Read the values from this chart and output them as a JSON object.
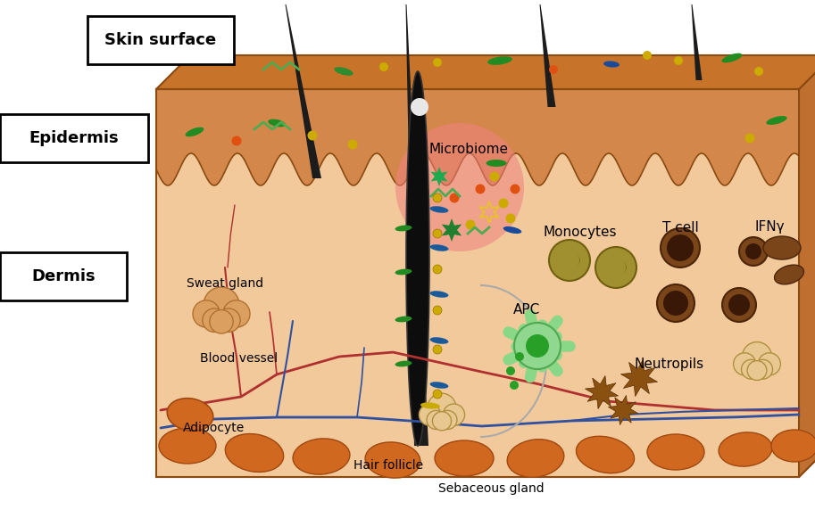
{
  "fig_width": 9.13,
  "fig_height": 5.81,
  "bg_color": "#ffffff",
  "dermis_fill": "#f2c99a",
  "epidermis_fill": "#d4874a",
  "top_face_fill": "#c8732a",
  "right_face_fill": "#bf7030",
  "bottom_face_fill": "#c07030",
  "box_outline": "#8a4a10",
  "hair_color": "#1c1c1c",
  "blood_red": "#b03030",
  "blood_blue": "#3050a0",
  "adipocyte_color": "#d06820",
  "adipocyte_ec": "#a04810",
  "sweat_color": "#dba060",
  "sweat_ec": "#b07030",
  "microbiome_pink": "#f08080",
  "sebaceous_color": "#e8c890",
  "sebaceous_ec": "#b09040",
  "monocyte_fill": "#a09030",
  "monocyte_nucleus": "#706010",
  "tcell_fill": "#7a4518",
  "tcell_inner": "#3a1808",
  "apc_fill": "#80c080",
  "apc_inner": "#30a030",
  "neutrophil_fill": "#8a5010",
  "cloud_right_fill": "#e8c890",
  "label_skin_surface": "Skin surface",
  "label_epidermis": "Epidermis",
  "label_dermis": "Dermis",
  "label_microbiome": "Microbiome",
  "label_sweat_gland": "Sweat gland",
  "label_blood_vessel": "Blood vessel",
  "label_adipocyte": "Adipocyte",
  "label_hair_follicle": "Hair follicle",
  "label_sebaceous_gland": "Sebaceous gland",
  "label_monocytes": "Monocytes",
  "label_tcell": "T cell",
  "label_ifng": "IFNγ",
  "label_apc": "APC",
  "label_neutrophils": "Neutropils"
}
